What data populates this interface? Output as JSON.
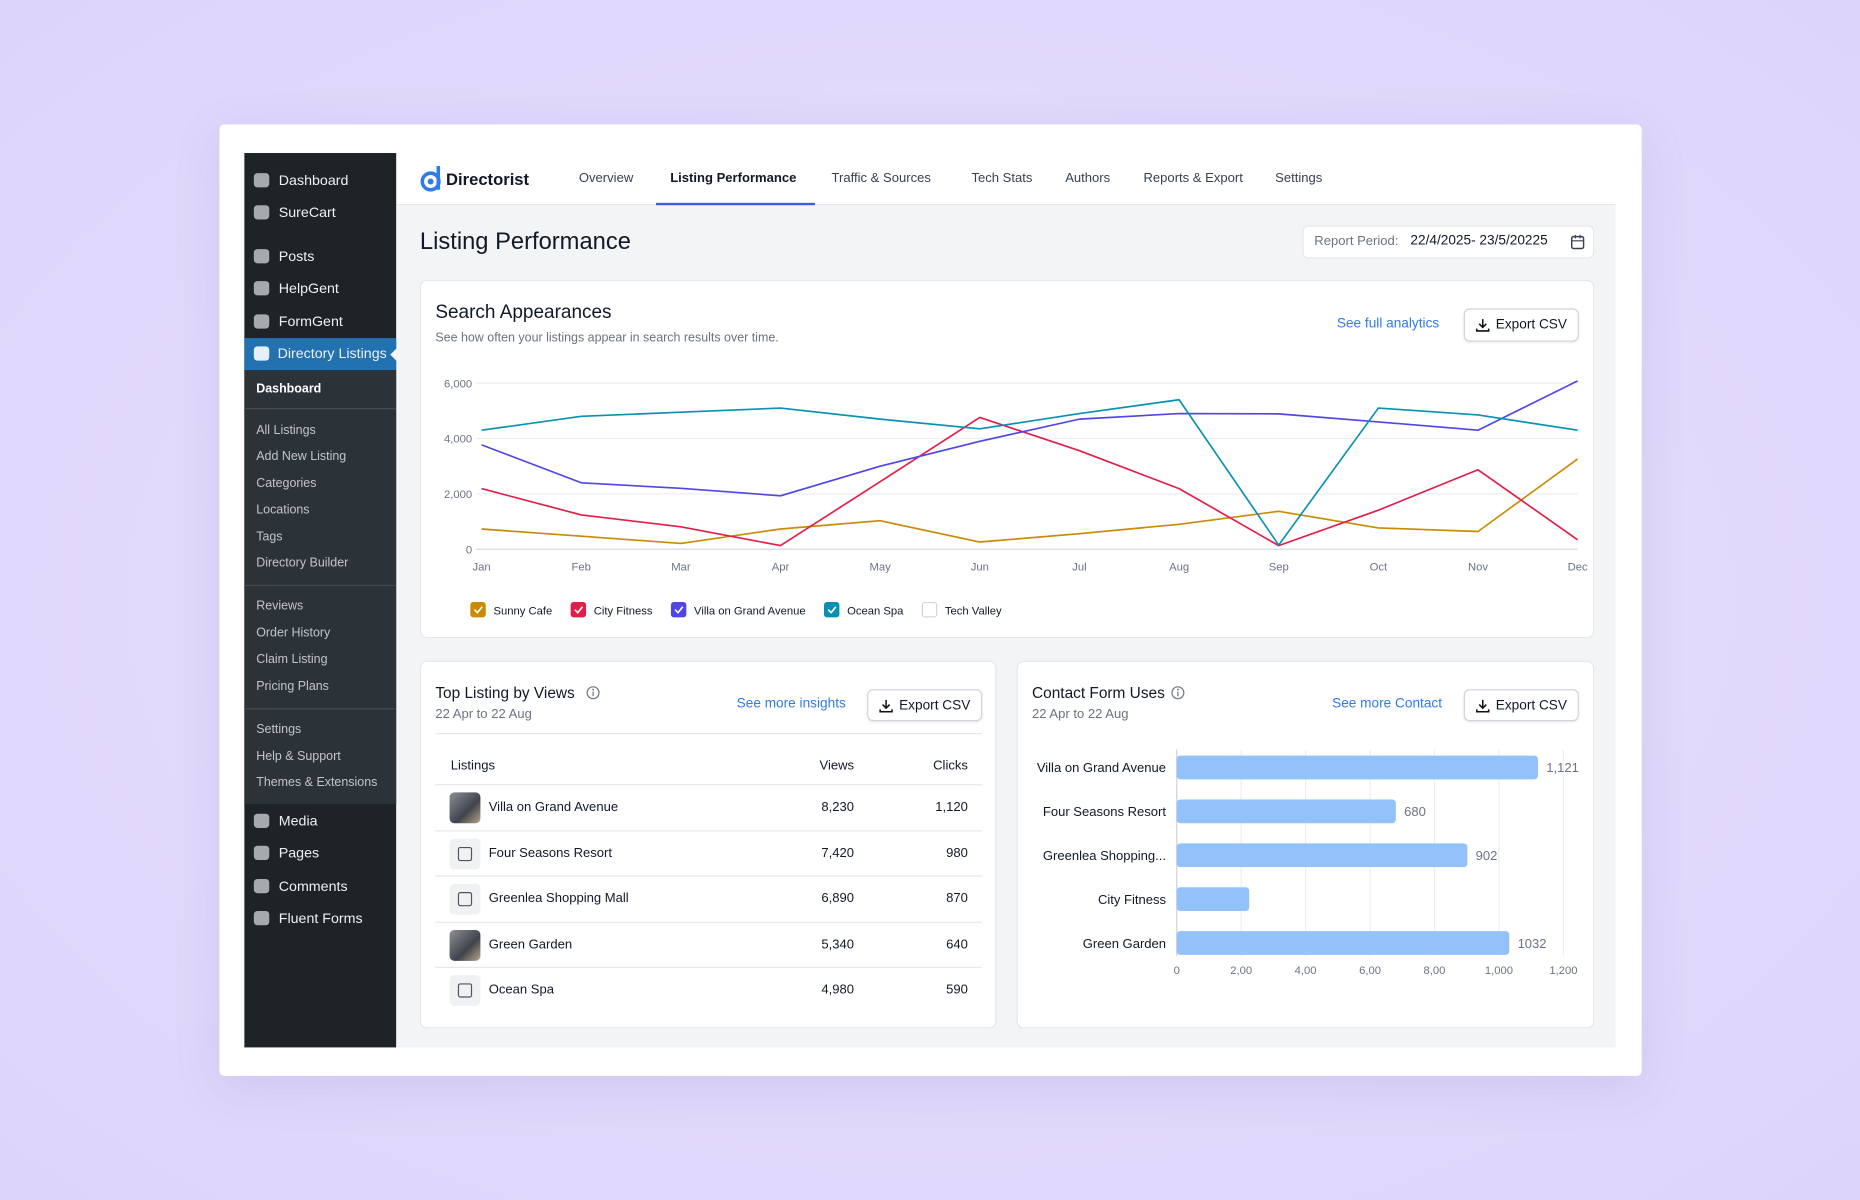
{
  "sidebar": {
    "menu": [
      "Dashboard",
      "SureCart",
      "Posts",
      "HelpGent",
      "FormGent",
      "Directory Listings"
    ],
    "submenu": [
      "Dashboard",
      "All Listings",
      "Add New Listing",
      "Categories",
      "Locations",
      "Tags",
      "Directory Builder",
      "Reviews",
      "Order History",
      "Claim Listing",
      "Pricing Plans",
      "Settings",
      "Help & Support",
      "Themes & Extensions"
    ],
    "menu_after": [
      "Media",
      "Pages",
      "Comments",
      "Fluent Forms"
    ]
  },
  "brand": "Directorist",
  "tabs": [
    "Overview",
    "Listing Performance",
    "Traffic & Sources",
    "Tech Stats",
    "Authors",
    "Reports & Export",
    "Settings"
  ],
  "page_title": "Listing Performance",
  "report_period": {
    "label": "Report Period:",
    "value": "22/4/2025- 23/5/20225"
  },
  "search_card": {
    "link": "See full analytics",
    "button": "Export CSV"
  },
  "table_card": {
    "title": "Top Listing by Views",
    "date": "22 Apr to 22 Aug",
    "link": "See more insights",
    "button": "Export CSV",
    "columns": [
      "Listings",
      "Views",
      "Clicks"
    ],
    "rows": [
      [
        "Villa on Grand Avenue",
        "8,230",
        "1,120"
      ],
      [
        "Four Seasons Resort",
        "7,420",
        "980"
      ],
      [
        "Greenlea Shopping Mall",
        "6,890",
        "870"
      ],
      [
        "Green Garden",
        "5,340",
        "640"
      ],
      [
        "Ocean Spa",
        "4,980",
        "590"
      ]
    ]
  },
  "contact_card": {
    "link": "See more Contact",
    "button": "Export CSV"
  },
  "chart_data": [
    {
      "type": "line",
      "title": "Search Appearances",
      "subtitle": "See how often your listings appear in search results over time.",
      "categories": [
        "Jan",
        "Feb",
        "Mar",
        "Apr",
        "May",
        "Jun",
        "Jul",
        "Aug",
        "Sep",
        "Oct",
        "Nov",
        "Dec"
      ],
      "series": [
        {
          "name": "Sunny Cafe",
          "color": "#ca8a04",
          "checked": true,
          "values": [
            730,
            470,
            210,
            730,
            1030,
            260,
            560,
            900,
            1370,
            770,
            640,
            3260
          ]
        },
        {
          "name": "City Fitness",
          "color": "#e11d48",
          "checked": true,
          "values": [
            2190,
            1240,
            810,
            130,
            2440,
            4760,
            3560,
            2190,
            130,
            1410,
            2870,
            340
          ]
        },
        {
          "name": "Villa on Grand Avenue",
          "color": "#4f46e5",
          "checked": true,
          "values": [
            3770,
            2400,
            2200,
            1930,
            3000,
            3900,
            4700,
            4900,
            4890,
            4600,
            4300,
            6080
          ]
        },
        {
          "name": "Ocean Spa",
          "color": "#0891b2",
          "checked": true,
          "values": [
            4300,
            4800,
            4950,
            5100,
            4700,
            4350,
            4900,
            5400,
            150,
            5100,
            4850,
            4300
          ]
        },
        {
          "name": "Tech Valley",
          "color": "#9ca3af",
          "checked": false,
          "values": [
            null,
            null,
            null,
            null,
            null,
            null,
            null,
            null,
            null,
            null,
            null,
            null
          ]
        }
      ],
      "ylim": [
        0,
        6000
      ],
      "yticks": [
        0,
        {
          "value": 2000,
          "label": "2,000"
        },
        {
          "value": 4000,
          "label": "4,000"
        },
        {
          "value": 6000,
          "label": "6,000"
        }
      ],
      "grid": true
    },
    {
      "type": "bar",
      "orientation": "horizontal",
      "title": "Contact Form Uses",
      "subtitle": "22 Apr to 22 Aug",
      "categories": [
        "Villa on Grand Avenue",
        "Four Seasons Resort",
        "Greenlea Shopping...",
        "City Fitness",
        "Green Garden"
      ],
      "values": [
        1121,
        680,
        902,
        225,
        1032
      ],
      "value_labels": [
        "1,121",
        "680",
        "902",
        null,
        "1032"
      ],
      "color": "#93c2fb",
      "xlim": [
        0,
        1200
      ],
      "xticks": [
        0,
        {
          "value": 200,
          "label": "2,00"
        },
        {
          "value": 400,
          "label": "4,00"
        },
        {
          "value": 600,
          "label": "6,00"
        },
        {
          "value": 800,
          "label": "8,00"
        },
        {
          "value": 1000,
          "label": "1,000"
        },
        {
          "value": 1200,
          "label": "1,200"
        }
      ],
      "grid": true
    }
  ]
}
